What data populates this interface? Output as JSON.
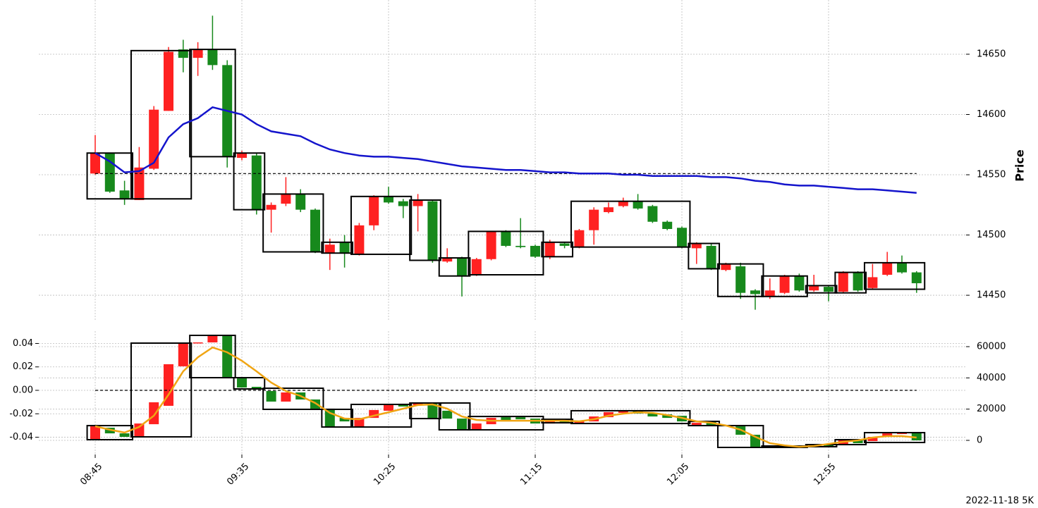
{
  "chart_data": [
    {
      "type": "candlestick",
      "ylabel": "Price",
      "categories": [
        "08:45",
        null,
        null,
        null,
        null,
        null,
        null,
        null,
        null,
        null,
        "09:35",
        null,
        null,
        null,
        null,
        null,
        null,
        null,
        null,
        null,
        "10:25",
        null,
        null,
        null,
        null,
        null,
        null,
        null,
        null,
        null,
        "11:15",
        null,
        null,
        null,
        null,
        null,
        null,
        null,
        null,
        null,
        "12:05",
        null,
        null,
        null,
        null,
        null,
        null,
        null,
        null,
        null,
        "12:55",
        null,
        null,
        null,
        null,
        null,
        null
      ],
      "open": [
        14551,
        14568,
        14537,
        14529,
        14555,
        14603,
        14654,
        14647,
        14654,
        14641,
        14564,
        14566,
        14521,
        14526,
        14534,
        14521,
        14485,
        14494,
        14484,
        14508,
        14532,
        14528,
        14524,
        14528,
        14478,
        14481,
        14467,
        14480,
        14503,
        14491,
        14491,
        14482,
        14493,
        14490,
        14504,
        14519,
        14524,
        14528,
        14524,
        14511,
        14506,
        14489,
        14491,
        14471,
        14474,
        14454,
        14449,
        14452,
        14466,
        14454,
        14457,
        14453,
        14469,
        14456,
        14467,
        14477,
        14469
      ],
      "high": [
        14583,
        14568,
        14545,
        14573,
        14607,
        14656,
        14662,
        14660,
        14682,
        14645,
        14570,
        14568,
        14527,
        14548,
        14538,
        14522,
        14497,
        14500,
        14510,
        14533,
        14540,
        14530,
        14534,
        14529,
        14489,
        14482,
        14481,
        14503,
        14504,
        14514,
        14492,
        14496,
        14494,
        14505,
        14523,
        14527,
        14531,
        14534,
        14525,
        14512,
        14507,
        14494,
        14493,
        14477,
        14477,
        14455,
        14464,
        14467,
        14468,
        14467,
        14458,
        14470,
        14470,
        14476,
        14486,
        14483,
        14470
      ],
      "low": [
        14550,
        14535,
        14525,
        14529,
        14554,
        14603,
        14635,
        14632,
        14637,
        14556,
        14562,
        14517,
        14502,
        14524,
        14519,
        14485,
        14471,
        14473,
        14483,
        14504,
        14526,
        14514,
        14503,
        14477,
        14477,
        14449,
        14466,
        14479,
        14490,
        14489,
        14481,
        14480,
        14489,
        14489,
        14492,
        14518,
        14523,
        14521,
        14510,
        14504,
        14489,
        14476,
        14471,
        14470,
        14447,
        14438,
        14447,
        14451,
        14453,
        14453,
        14445,
        14452,
        14453,
        14455,
        14466,
        14468,
        14452
      ],
      "close": [
        14568,
        14536,
        14530,
        14556,
        14604,
        14652,
        14647,
        14654,
        14641,
        14565,
        14568,
        14521,
        14525,
        14534,
        14521,
        14486,
        14492,
        14485,
        14508,
        14532,
        14527,
        14524,
        14529,
        14479,
        14481,
        14466,
        14480,
        14503,
        14491,
        14490,
        14482,
        14494,
        14491,
        14504,
        14521,
        14523,
        14528,
        14522,
        14511,
        14505,
        14490,
        14493,
        14472,
        14476,
        14452,
        14451,
        14454,
        14466,
        14454,
        14458,
        14453,
        14469,
        14454,
        14465,
        14477,
        14469,
        14460
      ],
      "up_color": "#ff2121",
      "down_color": "#17891c",
      "line": {
        "color": "#1414cc",
        "values": [
          14568,
          14561,
          14552,
          14553,
          14560,
          14581,
          14592,
          14597,
          14606,
          14603,
          14600,
          14592,
          14586,
          14584,
          14582,
          14576,
          14571,
          14568,
          14566,
          14565,
          14565,
          14564,
          14563,
          14561,
          14559,
          14557,
          14556,
          14555,
          14554,
          14554,
          14553,
          14552,
          14552,
          14551,
          14551,
          14551,
          14550,
          14550,
          14549,
          14549,
          14549,
          14549,
          14548,
          14548,
          14547,
          14545,
          14544,
          14542,
          14541,
          14541,
          14540,
          14539,
          14538,
          14538,
          14537,
          14536,
          14535
        ]
      },
      "hline": 14551,
      "boxes": [
        {
          "start": 0,
          "end": 2,
          "high": 14568,
          "low": 14530
        },
        {
          "start": 3,
          "end": 6,
          "high": 14653,
          "low": 14530
        },
        {
          "start": 7,
          "end": 9,
          "high": 14654,
          "low": 14565
        },
        {
          "start": 10,
          "end": 11,
          "high": 14568,
          "low": 14521
        },
        {
          "start": 12,
          "end": 15,
          "high": 14534,
          "low": 14486
        },
        {
          "start": 16,
          "end": 17,
          "high": 14494,
          "low": 14485
        },
        {
          "start": 18,
          "end": 21,
          "high": 14532,
          "low": 14484
        },
        {
          "start": 22,
          "end": 23,
          "high": 14529,
          "low": 14479
        },
        {
          "start": 24,
          "end": 25,
          "high": 14481,
          "low": 14466
        },
        {
          "start": 26,
          "end": 30,
          "high": 14503,
          "low": 14467
        },
        {
          "start": 31,
          "end": 32,
          "high": 14494,
          "low": 14482
        },
        {
          "start": 33,
          "end": 40,
          "high": 14528,
          "low": 14490
        },
        {
          "start": 41,
          "end": 42,
          "high": 14493,
          "low": 14472
        },
        {
          "start": 43,
          "end": 45,
          "high": 14476,
          "low": 14449
        },
        {
          "start": 46,
          "end": 48,
          "high": 14466,
          "low": 14449
        },
        {
          "start": 49,
          "end": 50,
          "high": 14458,
          "low": 14452
        },
        {
          "start": 51,
          "end": 52,
          "high": 14469,
          "low": 14452
        },
        {
          "start": 53,
          "end": 56,
          "high": 14477,
          "low": 14455
        }
      ],
      "ylim": [
        14429,
        14695
      ],
      "yticks": [
        14450,
        14500,
        14550,
        14600,
        14650
      ],
      "grid": true
    },
    {
      "type": "candlestick",
      "open": [
        -0.0415,
        -0.0319,
        -0.0367,
        -0.0391,
        -0.0289,
        -0.0132,
        0.0205,
        0.0403,
        0.0409,
        0.0469,
        0.0102,
        0.003,
        -0.0006,
        -0.0096,
        -0.0018,
        -0.0078,
        -0.0156,
        -0.0235,
        -0.0313,
        -0.0235,
        -0.0174,
        -0.0114,
        -0.0126,
        -0.0108,
        -0.0174,
        -0.0241,
        -0.0331,
        -0.0289,
        -0.0229,
        -0.0229,
        -0.0241,
        -0.0283,
        -0.0253,
        -0.0277,
        -0.0265,
        -0.0229,
        -0.0192,
        -0.0174,
        -0.0192,
        -0.0205,
        -0.0217,
        -0.0295,
        -0.0265,
        -0.0301,
        -0.0307,
        -0.0379,
        -0.0487,
        -0.0481,
        -0.0469,
        -0.0481,
        -0.0463,
        -0.0463,
        -0.0421,
        -0.0433,
        -0.0397,
        -0.0373,
        -0.0361
      ],
      "close": [
        -0.0307,
        -0.0367,
        -0.0397,
        -0.0283,
        -0.0102,
        0.0223,
        0.0403,
        0.0409,
        0.0469,
        0.0114,
        0.0024,
        0.0012,
        -0.0096,
        -0.0018,
        -0.0078,
        -0.0156,
        -0.0313,
        -0.0265,
        -0.0235,
        -0.0168,
        -0.0126,
        -0.0138,
        -0.0108,
        -0.0241,
        -0.0241,
        -0.0331,
        -0.0283,
        -0.0235,
        -0.0259,
        -0.0247,
        -0.0283,
        -0.0247,
        -0.0271,
        -0.0259,
        -0.0223,
        -0.0186,
        -0.0174,
        -0.0198,
        -0.0223,
        -0.0235,
        -0.0265,
        -0.0277,
        -0.0301,
        -0.0295,
        -0.0379,
        -0.0481,
        -0.0475,
        -0.0469,
        -0.0481,
        -0.0463,
        -0.0481,
        -0.0421,
        -0.0451,
        -0.0397,
        -0.0367,
        -0.0361,
        -0.0427
      ],
      "up_color": "#ff2121",
      "down_color": "#17891c",
      "line": {
        "color": "#f0a513",
        "axis": "y2",
        "values": [
          9000,
          6800,
          5000,
          8600,
          15800,
          29300,
          44200,
          53200,
          59500,
          56400,
          51000,
          44200,
          37000,
          31600,
          28400,
          23900,
          17600,
          14000,
          13500,
          15800,
          18000,
          20300,
          22600,
          23000,
          20300,
          15300,
          13100,
          12600,
          12600,
          12600,
          12600,
          12600,
          12600,
          12200,
          13500,
          15800,
          17100,
          18000,
          17600,
          16200,
          14400,
          12200,
          11300,
          9500,
          6800,
          2300,
          -1800,
          -3200,
          -4100,
          -3600,
          -2300,
          -900,
          0,
          1800,
          2700,
          2700,
          1800
        ]
      },
      "hline": 0,
      "boxes": [
        {
          "start": 0,
          "end": 2,
          "high": -0.0301,
          "low": -0.0421
        },
        {
          "start": 3,
          "end": 6,
          "high": 0.0403,
          "low": -0.0397
        },
        {
          "start": 7,
          "end": 9,
          "high": 0.0469,
          "low": 0.0108
        },
        {
          "start": 10,
          "end": 11,
          "high": 0.0108,
          "low": 0.0012
        },
        {
          "start": 12,
          "end": 15,
          "high": 0.0018,
          "low": -0.0162
        },
        {
          "start": 16,
          "end": 17,
          "high": -0.0162,
          "low": -0.0313
        },
        {
          "start": 18,
          "end": 21,
          "high": -0.012,
          "low": -0.0313
        },
        {
          "start": 22,
          "end": 23,
          "high": -0.0108,
          "low": -0.0241
        },
        {
          "start": 24,
          "end": 25,
          "high": -0.0108,
          "low": -0.0337
        },
        {
          "start": 26,
          "end": 30,
          "high": -0.0223,
          "low": -0.0337
        },
        {
          "start": 31,
          "end": 32,
          "high": -0.0247,
          "low": -0.0277
        },
        {
          "start": 33,
          "end": 40,
          "high": -0.0174,
          "low": -0.0283
        },
        {
          "start": 41,
          "end": 42,
          "high": -0.0265,
          "low": -0.0301
        },
        {
          "start": 43,
          "end": 45,
          "high": -0.0301,
          "low": -0.0487
        },
        {
          "start": 46,
          "end": 48,
          "high": -0.0475,
          "low": -0.0487
        },
        {
          "start": 49,
          "end": 50,
          "high": -0.0463,
          "low": -0.0481
        },
        {
          "start": 51,
          "end": 52,
          "high": -0.0421,
          "low": -0.0463
        },
        {
          "start": 53,
          "end": 56,
          "high": -0.0361,
          "low": -0.0445
        }
      ],
      "ylim": [
        -0.0547,
        0.0505
      ],
      "yticks": [
        -0.04,
        -0.02,
        {
          "value": 0,
          "label": "0.00"
        },
        0.02,
        0.04
      ],
      "y2lim": [
        -9023,
        69925
      ],
      "y2ticks": [
        0,
        20000,
        40000,
        60000
      ],
      "grid": true
    }
  ],
  "footer": "2022-11-18 5K"
}
